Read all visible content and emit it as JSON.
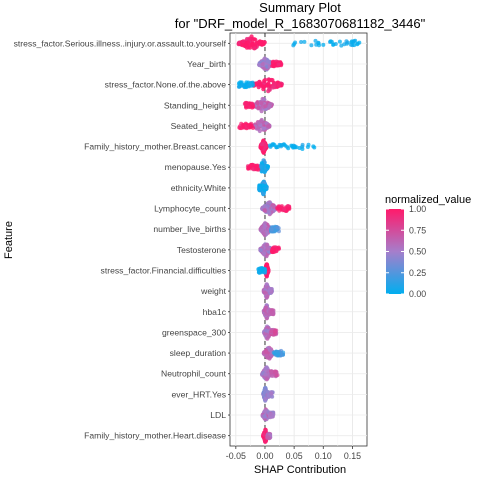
{
  "chart_data": {
    "type": "scatter",
    "subtype": "shap-beeswarm",
    "title_line1": "Summary Plot",
    "title_line2": "for \"DRF_model_R_1683070681182_3446\"",
    "xlabel": "SHAP Contribution",
    "ylabel": "Feature",
    "xlim": [
      -0.06,
      0.175
    ],
    "xticks": [
      -0.05,
      0.0,
      0.05,
      0.1,
      0.15
    ],
    "xtick_labels": [
      "-0.05",
      "0.00",
      "0.05",
      "0.10",
      "0.15"
    ],
    "reference_line_x": 0.0,
    "grid": true,
    "legend": {
      "title": "normalized_value",
      "position": "right",
      "ticks": [
        1.0,
        0.75,
        0.5,
        0.25,
        0.0
      ],
      "tick_labels": [
        "1.00",
        "0.75",
        "0.50",
        "0.25",
        "0.00"
      ],
      "color_low": "#00aeef",
      "color_mid": "#a67ecb",
      "color_high": "#ff1a6b"
    },
    "features": [
      {
        "name": "stress_factor.Serious.illness..injury.or.assault.to.yourself",
        "min": -0.045,
        "max": 0.165,
        "core_min": -0.045,
        "core_max": 0.0,
        "tail_min": 0.035,
        "tail_max": 0.165,
        "tail_color": 0.0,
        "core_color": 1.0
      },
      {
        "name": "Year_birth",
        "min": -0.018,
        "max": 0.028,
        "core_min": -0.01,
        "core_max": 0.012,
        "tail_min": 0.012,
        "tail_max": 0.028,
        "tail_color": 1.0,
        "core_color": 0.5
      },
      {
        "name": "stress_factor.None.of.the.above",
        "min": -0.045,
        "max": 0.042,
        "core_min": -0.02,
        "core_max": 0.03,
        "tail_min": -0.045,
        "tail_max": -0.02,
        "tail_color": 0.0,
        "core_color": 1.0
      },
      {
        "name": "Standing_height",
        "min": -0.035,
        "max": 0.025,
        "core_min": -0.02,
        "core_max": 0.012,
        "tail_min": -0.035,
        "tail_max": -0.02,
        "tail_color": 1.0,
        "core_color": 0.6
      },
      {
        "name": "Seated_height",
        "min": -0.045,
        "max": 0.015,
        "core_min": -0.02,
        "core_max": 0.008,
        "tail_min": -0.045,
        "tail_max": -0.02,
        "tail_color": 1.0,
        "core_color": 0.6
      },
      {
        "name": "Family_history_mother.Breast.cancer",
        "min": -0.008,
        "max": 0.085,
        "core_min": -0.008,
        "core_max": 0.003,
        "tail_min": 0.008,
        "tail_max": 0.085,
        "tail_color": 0.0,
        "core_color": 1.0
      },
      {
        "name": "menopause.Yes",
        "min": -0.03,
        "max": 0.006,
        "core_min": -0.01,
        "core_max": 0.005,
        "tail_min": -0.03,
        "tail_max": -0.01,
        "tail_color": 1.0,
        "core_color": 0.1
      },
      {
        "name": "ethnicity.White",
        "min": -0.01,
        "max": 0.004,
        "core_min": -0.008,
        "core_max": 0.003,
        "tail_min": -0.01,
        "tail_max": -0.008,
        "tail_color": 0.0,
        "core_color": 0.1
      },
      {
        "name": "Lymphocyte_count",
        "min": -0.018,
        "max": 0.042,
        "core_min": -0.005,
        "core_max": 0.02,
        "tail_min": 0.02,
        "tail_max": 0.042,
        "tail_color": 1.0,
        "core_color": 0.55
      },
      {
        "name": "number_live_births",
        "min": -0.012,
        "max": 0.025,
        "core_min": -0.008,
        "core_max": 0.01,
        "tail_min": 0.01,
        "tail_max": 0.025,
        "tail_color": 0.2,
        "core_color": 0.6
      },
      {
        "name": "Testosterone",
        "min": -0.018,
        "max": 0.024,
        "core_min": -0.008,
        "core_max": 0.012,
        "tail_min": 0.012,
        "tail_max": 0.024,
        "tail_color": 1.0,
        "core_color": 0.55
      },
      {
        "name": "stress_factor.Financial.difficulties",
        "min": -0.012,
        "max": 0.006,
        "core_min": 0.0,
        "core_max": 0.006,
        "tail_min": -0.012,
        "tail_max": 0.0,
        "tail_color": 0.0,
        "core_color": 1.0
      },
      {
        "name": "weight",
        "min": -0.005,
        "max": 0.012,
        "core_min": -0.002,
        "core_max": 0.008,
        "tail_min": 0.008,
        "tail_max": 0.012,
        "tail_color": 0.5,
        "core_color": 0.55
      },
      {
        "name": "hba1c",
        "min": -0.006,
        "max": 0.015,
        "core_min": -0.002,
        "core_max": 0.008,
        "tail_min": 0.008,
        "tail_max": 0.015,
        "tail_color": 0.6,
        "core_color": 0.55
      },
      {
        "name": "greenspace_300",
        "min": -0.006,
        "max": 0.02,
        "core_min": -0.002,
        "core_max": 0.01,
        "tail_min": 0.01,
        "tail_max": 0.02,
        "tail_color": 0.7,
        "core_color": 0.55
      },
      {
        "name": "sleep_duration",
        "min": -0.006,
        "max": 0.032,
        "core_min": -0.002,
        "core_max": 0.015,
        "tail_min": 0.015,
        "tail_max": 0.032,
        "tail_color": 0.2,
        "core_color": 0.6
      },
      {
        "name": "Neutrophil_count",
        "min": -0.01,
        "max": 0.022,
        "core_min": -0.005,
        "core_max": 0.01,
        "tail_min": 0.01,
        "tail_max": 0.022,
        "tail_color": 0.7,
        "core_color": 0.55
      },
      {
        "name": "ever_HRT.Yes",
        "min": -0.005,
        "max": 0.014,
        "core_min": -0.003,
        "core_max": 0.004,
        "tail_min": 0.004,
        "tail_max": 0.014,
        "tail_color": 0.5,
        "core_color": 0.4
      },
      {
        "name": "LDL",
        "min": -0.008,
        "max": 0.015,
        "core_min": -0.004,
        "core_max": 0.008,
        "tail_min": 0.008,
        "tail_max": 0.015,
        "tail_color": 0.5,
        "core_color": 0.55
      },
      {
        "name": "Family_history_mother.Heart.disease",
        "min": -0.004,
        "max": 0.009,
        "core_min": -0.003,
        "core_max": 0.004,
        "tail_min": 0.004,
        "tail_max": 0.009,
        "tail_color": 0.6,
        "core_color": 1.0
      }
    ]
  }
}
